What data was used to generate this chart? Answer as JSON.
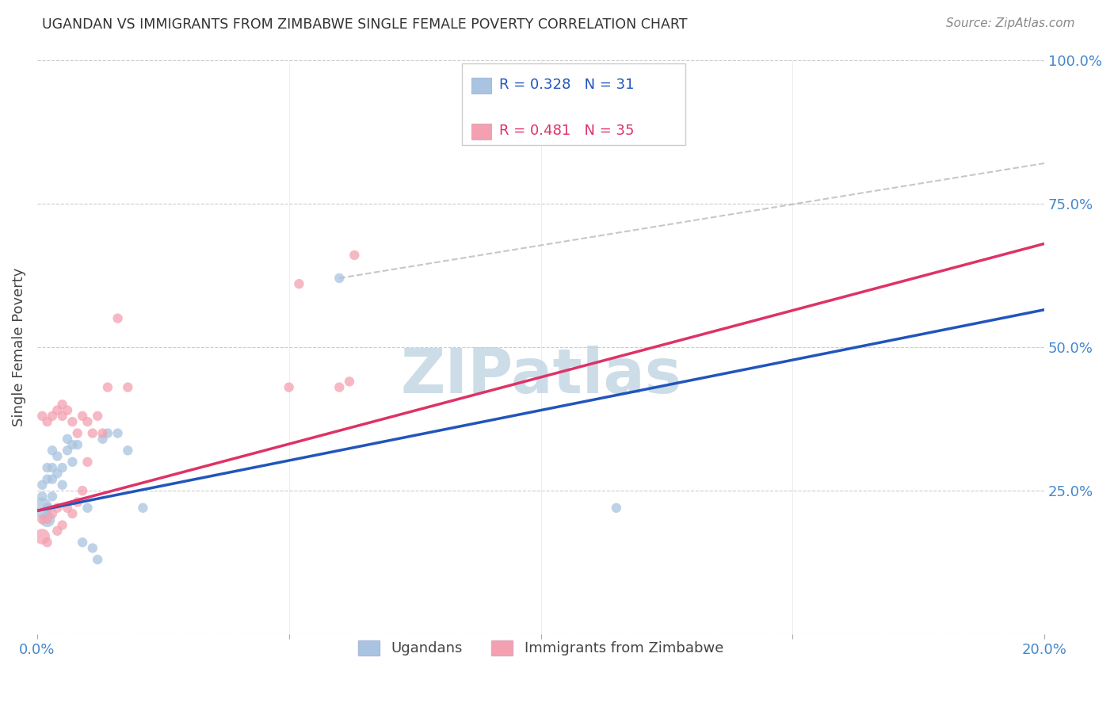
{
  "title": "UGANDAN VS IMMIGRANTS FROM ZIMBABWE SINGLE FEMALE POVERTY CORRELATION CHART",
  "source": "Source: ZipAtlas.com",
  "ylabel": "Single Female Poverty",
  "xlim": [
    0.0,
    0.2
  ],
  "ylim": [
    0.0,
    1.0
  ],
  "xticks": [
    0.0,
    0.05,
    0.1,
    0.15,
    0.2
  ],
  "xticklabels": [
    "0.0%",
    "",
    "",
    "",
    "20.0%"
  ],
  "yticks": [
    0.0,
    0.25,
    0.5,
    0.75,
    1.0
  ],
  "yticklabels": [
    "",
    "25.0%",
    "50.0%",
    "75.0%",
    "100.0%"
  ],
  "blue_R": 0.328,
  "blue_N": 31,
  "pink_R": 0.481,
  "pink_N": 35,
  "blue_color": "#a8c4e0",
  "pink_color": "#f4a0b0",
  "blue_line_color": "#2255bb",
  "pink_line_color": "#dd3366",
  "grid_color": "#cccccc",
  "title_color": "#333333",
  "axis_label_color": "#444444",
  "tick_label_color": "#4488cc",
  "watermark_color": "#ccdde8",
  "blue_trend": [
    0.0,
    0.2,
    0.215,
    0.565
  ],
  "pink_trend": [
    0.0,
    0.2,
    0.215,
    0.68
  ],
  "pink_dashed": [
    0.06,
    0.2,
    0.62,
    0.82
  ],
  "blue_scatter_x": [
    0.001,
    0.001,
    0.001,
    0.002,
    0.002,
    0.002,
    0.002,
    0.003,
    0.003,
    0.003,
    0.003,
    0.004,
    0.004,
    0.005,
    0.005,
    0.006,
    0.006,
    0.007,
    0.007,
    0.008,
    0.009,
    0.01,
    0.011,
    0.012,
    0.013,
    0.014,
    0.016,
    0.018,
    0.021,
    0.06,
    0.115
  ],
  "blue_scatter_y": [
    0.22,
    0.24,
    0.26,
    0.2,
    0.22,
    0.27,
    0.29,
    0.24,
    0.27,
    0.29,
    0.32,
    0.28,
    0.31,
    0.26,
    0.29,
    0.32,
    0.34,
    0.3,
    0.33,
    0.33,
    0.16,
    0.22,
    0.15,
    0.13,
    0.34,
    0.35,
    0.35,
    0.32,
    0.22,
    0.62,
    0.22
  ],
  "blue_scatter_sizes": [
    350,
    80,
    80,
    200,
    80,
    80,
    80,
    80,
    80,
    80,
    80,
    80,
    80,
    80,
    80,
    80,
    80,
    80,
    80,
    80,
    80,
    80,
    80,
    80,
    80,
    80,
    80,
    80,
    80,
    80,
    80
  ],
  "pink_scatter_x": [
    0.001,
    0.001,
    0.001,
    0.002,
    0.002,
    0.002,
    0.003,
    0.003,
    0.004,
    0.004,
    0.004,
    0.005,
    0.005,
    0.005,
    0.006,
    0.006,
    0.007,
    0.007,
    0.008,
    0.008,
    0.009,
    0.009,
    0.01,
    0.01,
    0.011,
    0.012,
    0.013,
    0.014,
    0.016,
    0.018,
    0.05,
    0.052,
    0.06,
    0.062,
    0.063
  ],
  "pink_scatter_y": [
    0.17,
    0.2,
    0.38,
    0.16,
    0.2,
    0.37,
    0.21,
    0.38,
    0.18,
    0.22,
    0.39,
    0.19,
    0.38,
    0.4,
    0.22,
    0.39,
    0.21,
    0.37,
    0.23,
    0.35,
    0.25,
    0.38,
    0.3,
    0.37,
    0.35,
    0.38,
    0.35,
    0.43,
    0.55,
    0.43,
    0.43,
    0.61,
    0.43,
    0.44,
    0.66
  ],
  "pink_scatter_sizes": [
    200,
    80,
    80,
    80,
    80,
    80,
    80,
    80,
    80,
    80,
    80,
    80,
    80,
    80,
    80,
    80,
    80,
    80,
    80,
    80,
    80,
    80,
    80,
    80,
    80,
    80,
    80,
    80,
    80,
    80,
    80,
    80,
    80,
    80,
    80
  ]
}
